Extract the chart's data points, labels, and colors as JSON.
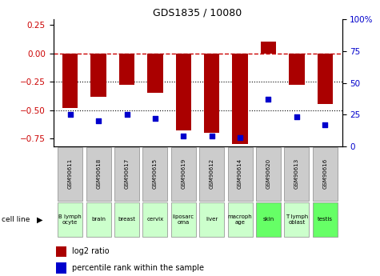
{
  "title": "GDS1835 / 10080",
  "samples": [
    "GSM90611",
    "GSM90618",
    "GSM90617",
    "GSM90615",
    "GSM90619",
    "GSM90612",
    "GSM90614",
    "GSM90620",
    "GSM90613",
    "GSM90616"
  ],
  "cell_lines": [
    "B lymph\nocyte",
    "brain",
    "breast",
    "cervix",
    "liposarc\noma",
    "liver",
    "macroph\nage",
    "skin",
    "T lymph\noblast",
    "testis"
  ],
  "cell_line_colors": [
    "#ccffcc",
    "#ccffcc",
    "#ccffcc",
    "#ccffcc",
    "#ccffcc",
    "#ccffcc",
    "#ccffcc",
    "#66ff66",
    "#ccffcc",
    "#66ff66"
  ],
  "sample_box_color": "#cccccc",
  "log2_ratio": [
    -0.48,
    -0.38,
    -0.28,
    -0.35,
    -0.68,
    -0.7,
    -0.8,
    0.1,
    -0.28,
    -0.45
  ],
  "percentile_rank": [
    25,
    20,
    25,
    22,
    8,
    8,
    7,
    37,
    23,
    17
  ],
  "bar_color": "#aa0000",
  "dot_color": "#0000cc",
  "ylim_left": [
    -0.82,
    0.3
  ],
  "ylim_right": [
    0,
    100
  ],
  "left_yticks": [
    -0.75,
    -0.5,
    -0.25,
    0.0,
    0.25
  ],
  "right_yticks": [
    0,
    25,
    50,
    75,
    100
  ],
  "hline_y": 0.0,
  "dotted_lines": [
    -0.25,
    -0.5
  ],
  "legend_log2": "log2 ratio",
  "legend_pct": "percentile rank within the sample",
  "bar_width": 0.55
}
